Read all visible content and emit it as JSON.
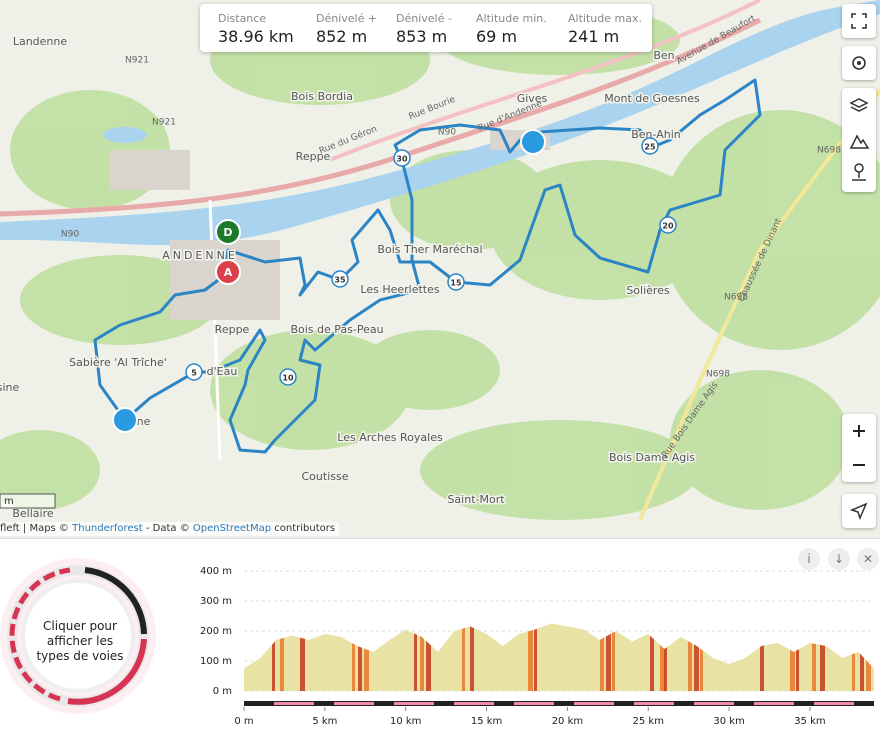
{
  "stats": [
    {
      "label": "Distance",
      "value": "38.96 km"
    },
    {
      "label": "Dénivelé +",
      "value": "852 m"
    },
    {
      "label": "Dénivelé -",
      "value": "853 m"
    },
    {
      "label": "Altitude min.",
      "value": "69 m"
    },
    {
      "label": "Altitude max.",
      "value": "241 m"
    }
  ],
  "map_labels": [
    "Landenne",
    "Bois Bordia",
    "Reppe",
    "Gives",
    "Mont de Goesnes",
    "Ben",
    "Ben-Ahin",
    "Bois Ther Maréchal",
    "Les Heerlettes",
    "Solières",
    "Reppe",
    "Bois de Pas-Peau",
    "Sabière 'Al Trîche'",
    "d'Eau",
    "Les Arches Royales",
    "Bois Dame Agis",
    "Coutisse",
    "Saint-Mort",
    "Bellaire",
    "ANDENNE",
    "sine",
    "nne"
  ],
  "road_labels": [
    "N921",
    "N921",
    "N90",
    "N90",
    "N698",
    "N698",
    "N698",
    "Rue Bourie",
    "Rue d'Andenne",
    "Rue du Géron",
    "Avenue de Beaufort",
    "Chaussée de Dinant",
    "Rue Bois Dame Agis"
  ],
  "route_markers": [
    "5",
    "10",
    "15",
    "20",
    "25",
    "30",
    "35"
  ],
  "endpoints": [
    "D",
    "A"
  ],
  "scale_label": "m",
  "attribution": [
    "fleft | Maps © ",
    "Thunderforest",
    " - Data © ",
    "OpenStreetMap",
    " contributors"
  ],
  "surface_widget": [
    "Cliquer pour",
    "afficher les",
    "types de voies"
  ],
  "elevation": {
    "type": "area",
    "color": "#e8e3a4",
    "x": [
      0,
      1,
      2,
      3,
      4,
      5,
      6,
      7,
      8,
      9,
      10,
      11,
      12,
      13,
      14,
      15,
      16,
      17,
      18,
      19,
      20,
      21,
      22,
      23,
      24,
      25,
      26,
      27,
      28,
      29,
      30,
      31,
      32,
      33,
      34,
      35,
      36,
      37,
      38,
      38.96
    ],
    "values": [
      75,
      110,
      170,
      185,
      170,
      190,
      180,
      150,
      130,
      170,
      205,
      180,
      130,
      200,
      215,
      190,
      150,
      190,
      205,
      225,
      215,
      205,
      170,
      200,
      165,
      190,
      140,
      180,
      150,
      110,
      90,
      110,
      150,
      160,
      130,
      160,
      150,
      110,
      130,
      75
    ],
    "xlim": [
      0,
      38.96
    ],
    "ylim": [
      0,
      400
    ],
    "xticks": [
      {
        "value": 0,
        "label": "0 m"
      },
      {
        "value": 5,
        "label": "5 km"
      },
      {
        "value": 10,
        "label": "10 km"
      },
      {
        "value": 15,
        "label": "15 km"
      },
      {
        "value": 20,
        "label": "20 km"
      },
      {
        "value": 25,
        "label": "25 km"
      },
      {
        "value": 30,
        "label": "30 km"
      },
      {
        "value": 35,
        "label": "35 km"
      }
    ],
    "yticks": [
      {
        "value": 0,
        "label": "0 m"
      },
      {
        "value": 100,
        "label": "100 m"
      },
      {
        "value": 200,
        "label": "200 m"
      },
      {
        "value": 300,
        "label": "300 m"
      },
      {
        "value": 400,
        "label": "400 m"
      }
    ],
    "grid": true
  }
}
